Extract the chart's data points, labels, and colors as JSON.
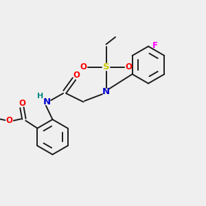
{
  "bg_color": "#efefef",
  "bond_color": "#1a1a1a",
  "atom_colors": {
    "O": "#ff0000",
    "N": "#0000cc",
    "S": "#cccc00",
    "F": "#ff00ff",
    "H": "#008888",
    "C": "#1a1a1a"
  },
  "figsize": [
    3.0,
    3.0
  ],
  "dpi": 100
}
